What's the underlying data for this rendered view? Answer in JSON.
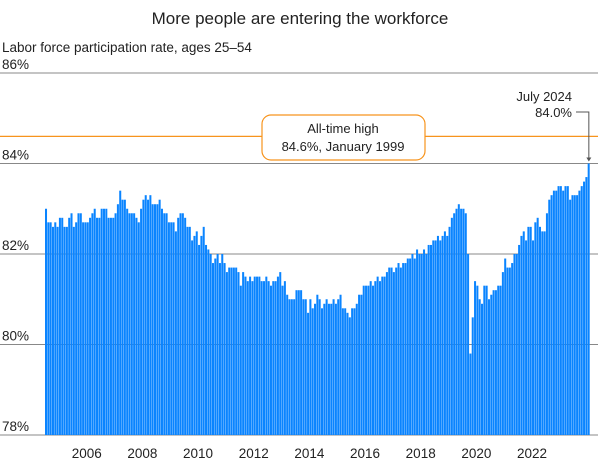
{
  "chart_data": {
    "type": "bar",
    "title": "More people are entering the workforce",
    "subtitle": "Labor force participation rate, ages 25–54",
    "ylim": [
      78,
      86
    ],
    "yticks": [
      86,
      84,
      82,
      80,
      78
    ],
    "ytick_labels": [
      "86%",
      "84%",
      "82%",
      "80%",
      "78%"
    ],
    "xtick_labels": [
      "2006",
      "2008",
      "2010",
      "2012",
      "2014",
      "2016",
      "2018",
      "2020",
      "2022"
    ],
    "grid": true,
    "start_year": 2005,
    "frequency": "monthly",
    "bar_color": "#0a84ff",
    "reference_line": {
      "value": 84.6,
      "color": "#f7941d",
      "label_line1": "All-time high",
      "label_line2": "84.6%, January 1999"
    },
    "callout": {
      "line1": "July 2024",
      "line2": "84.0%"
    },
    "values": [
      83.0,
      82.7,
      82.7,
      82.6,
      82.7,
      82.6,
      82.8,
      82.8,
      82.6,
      82.6,
      82.8,
      82.9,
      82.6,
      82.7,
      82.9,
      82.9,
      82.7,
      82.7,
      82.7,
      82.8,
      82.9,
      83.0,
      82.8,
      82.8,
      83.0,
      83.0,
      83.0,
      82.8,
      82.8,
      82.8,
      82.9,
      83.1,
      83.4,
      83.2,
      83.2,
      83.0,
      82.9,
      82.9,
      82.9,
      82.8,
      82.7,
      83.0,
      83.2,
      83.3,
      83.2,
      83.3,
      83.1,
      83.1,
      83.1,
      83.2,
      83.0,
      82.9,
      82.9,
      82.7,
      82.7,
      82.7,
      82.5,
      82.8,
      82.9,
      82.9,
      82.8,
      82.6,
      82.6,
      82.3,
      82.4,
      82.5,
      82.2,
      82.4,
      82.6,
      82.2,
      82.1,
      82.0,
      81.8,
      81.9,
      82.0,
      81.8,
      82.0,
      81.8,
      81.6,
      81.7,
      81.7,
      81.7,
      81.7,
      81.6,
      81.3,
      81.6,
      81.5,
      81.4,
      81.5,
      81.4,
      81.5,
      81.5,
      81.5,
      81.4,
      81.4,
      81.5,
      81.4,
      81.3,
      81.4,
      81.4,
      81.5,
      81.6,
      81.3,
      81.4,
      81.1,
      81.0,
      81.0,
      81.0,
      81.2,
      81.2,
      81.2,
      81.0,
      81.0,
      80.7,
      81.0,
      80.8,
      80.9,
      81.1,
      81.0,
      80.8,
      80.9,
      81.0,
      80.9,
      80.9,
      81.0,
      80.9,
      81.0,
      81.1,
      80.8,
      80.8,
      80.7,
      80.6,
      80.8,
      80.8,
      80.9,
      81.1,
      81.1,
      81.3,
      81.3,
      81.3,
      81.4,
      81.3,
      81.4,
      81.5,
      81.4,
      81.5,
      81.5,
      81.6,
      81.7,
      81.7,
      81.6,
      81.7,
      81.8,
      81.7,
      81.8,
      81.8,
      81.9,
      81.9,
      82.0,
      81.9,
      82.1,
      82.0,
      82.0,
      82.1,
      82.0,
      82.2,
      82.2,
      82.3,
      82.3,
      82.4,
      82.3,
      82.4,
      82.5,
      82.4,
      82.6,
      82.8,
      82.9,
      83.0,
      83.1,
      83.0,
      83.0,
      82.9,
      82.0,
      79.8,
      80.6,
      81.4,
      81.3,
      81.0,
      80.9,
      81.3,
      81.3,
      81.0,
      81.1,
      81.2,
      81.2,
      81.3,
      81.3,
      81.6,
      81.9,
      81.7,
      81.7,
      81.8,
      82.0,
      82.0,
      82.2,
      82.4,
      82.5,
      82.3,
      82.6,
      82.6,
      82.3,
      82.7,
      82.8,
      82.6,
      82.5,
      82.5,
      82.9,
      83.2,
      83.3,
      83.4,
      83.4,
      83.5,
      83.5,
      83.4,
      83.5,
      83.5,
      83.2,
      83.3,
      83.3,
      83.3,
      83.4,
      83.5,
      83.6,
      83.7,
      84.0
    ]
  }
}
